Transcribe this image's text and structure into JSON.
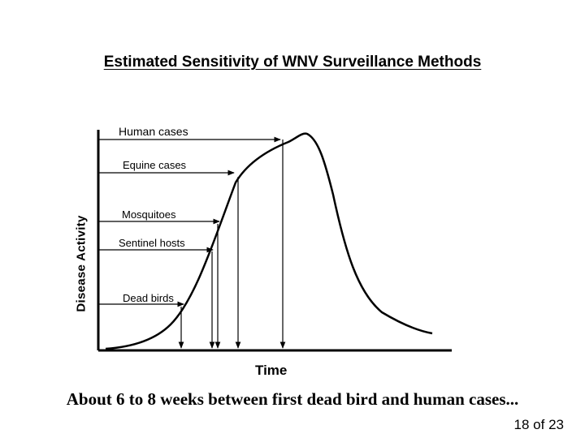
{
  "slide": {
    "title": "Estimated Sensitivity of WNV Surveillance Methods",
    "caption": "About 6 to 8 weeks between first dead bird and human cases...",
    "page_number": "18 of 23"
  },
  "diagram": {
    "y_axis_label": "Disease Activity",
    "x_axis_label": "Time",
    "curve_color": "#000000",
    "methods": [
      {
        "id": "human",
        "label": "Human cases"
      },
      {
        "id": "equine",
        "label": "Equine cases"
      },
      {
        "id": "mosquitoes",
        "label": "Mosquitoes"
      },
      {
        "id": "sentinel",
        "label": "Sentinel hosts"
      },
      {
        "id": "dead-birds",
        "label": "Dead birds"
      }
    ]
  }
}
